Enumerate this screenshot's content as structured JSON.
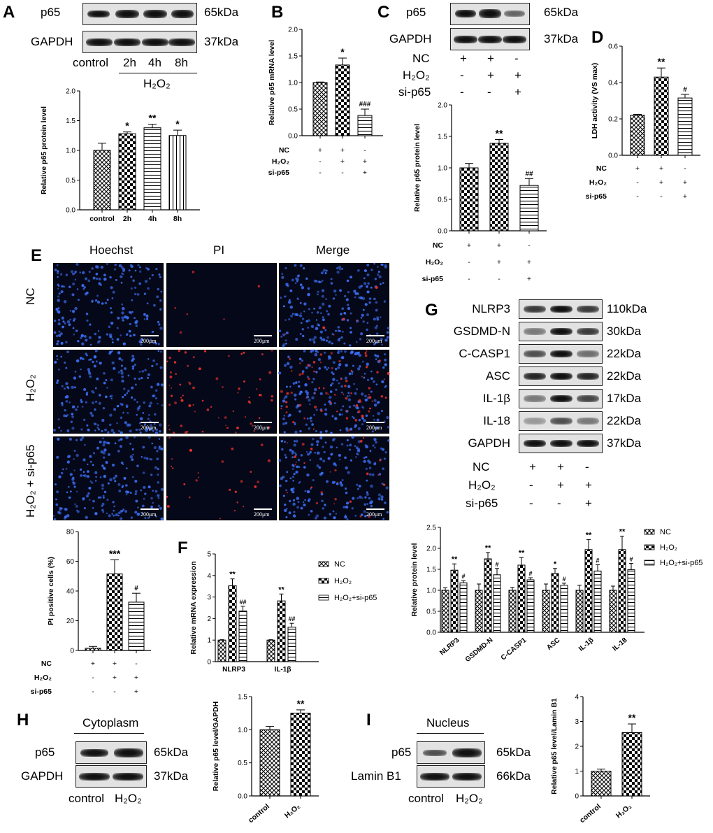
{
  "panels": {
    "A": {
      "label": "A",
      "blots": [
        {
          "name": "p65",
          "size": "65kDa"
        },
        {
          "name": "GAPDH",
          "size": "37kDa"
        }
      ],
      "lanes": [
        "control",
        "2h",
        "4h",
        "8h"
      ],
      "treatment": "H₂O₂"
    },
    "B": {
      "label": "B"
    },
    "C": {
      "label": "C",
      "blots": [
        {
          "name": "p65",
          "size": "65kDa"
        },
        {
          "name": "GAPDH",
          "size": "37kDa"
        }
      ],
      "conditions": [
        {
          "name": "NC",
          "signs": [
            "+",
            "+",
            "-"
          ]
        },
        {
          "name": "H₂O₂",
          "signs": [
            "-",
            "+",
            "+"
          ]
        },
        {
          "name": "si-p65",
          "signs": [
            "-",
            "-",
            "+"
          ]
        }
      ]
    },
    "D": {
      "label": "D"
    },
    "E": {
      "label": "E",
      "columns": [
        "Hoechst",
        "PI",
        "Merge"
      ],
      "rows": [
        "NC",
        "H₂O₂",
        "H₂O₂ + si-p65"
      ],
      "scale": "200μm"
    },
    "F": {
      "label": "F"
    },
    "G": {
      "label": "G",
      "blots": [
        {
          "name": "NLRP3",
          "size": "110kDa"
        },
        {
          "name": "GSDMD-N",
          "size": "30kDa"
        },
        {
          "name": "C-CASP1",
          "size": "22kDa"
        },
        {
          "name": "ASC",
          "size": "22kDa"
        },
        {
          "name": "IL-1β",
          "size": "17kDa"
        },
        {
          "name": "IL-18",
          "size": "22kDa"
        },
        {
          "name": "GAPDH",
          "size": "37kDa"
        }
      ],
      "conditions": [
        {
          "name": "NC",
          "signs": [
            "+",
            "+",
            "-"
          ]
        },
        {
          "name": "H₂O₂",
          "signs": [
            "-",
            "+",
            "+"
          ]
        },
        {
          "name": "si-p65",
          "signs": [
            "-",
            "-",
            "+"
          ]
        }
      ]
    },
    "H": {
      "label": "H",
      "compartment": "Cytoplasm",
      "blots": [
        {
          "name": "p65",
          "size": "65kDa"
        },
        {
          "name": "GAPDH",
          "size": "37kDa"
        }
      ],
      "lanes": [
        "control",
        "H₂O₂"
      ]
    },
    "I": {
      "label": "I",
      "compartment": "Nucleus",
      "blots": [
        {
          "name": "p65",
          "size": "65kDa"
        },
        {
          "name": "Lamin B1",
          "size": "66kDa"
        }
      ],
      "lanes": [
        "control",
        "H₂O₂"
      ]
    }
  },
  "chart_data": [
    {
      "id": "A",
      "type": "bar",
      "categories": [
        "control",
        "2h",
        "4h",
        "8h"
      ],
      "values": [
        1.0,
        1.28,
        1.38,
        1.25
      ],
      "errors": [
        0.12,
        0.03,
        0.06,
        0.09
      ],
      "sig": [
        "",
        "*",
        "**",
        "*"
      ],
      "ylabel": "Relative p65 protein level",
      "ylim": [
        0,
        2.0
      ],
      "yticks": [
        "0.0",
        "0.5",
        "1.0",
        "1.5",
        "2.0"
      ]
    },
    {
      "id": "B",
      "type": "bar",
      "categories": [
        "",
        "",
        ""
      ],
      "values": [
        1.0,
        1.33,
        0.38
      ],
      "errors": [
        0.01,
        0.13,
        0.12
      ],
      "sig": [
        "",
        "*",
        "###"
      ],
      "ylabel": "Relative p65 mRNA level",
      "ylim": [
        0,
        2.0
      ],
      "yticks": [
        "0.0",
        "0.5",
        "1.0",
        "1.5",
        "2.0"
      ],
      "conditions": [
        {
          "name": "NC",
          "signs": [
            "+",
            "+",
            "-"
          ]
        },
        {
          "name": "H₂O₂",
          "signs": [
            "-",
            "+",
            "+"
          ]
        },
        {
          "name": "si-p65",
          "signs": [
            "-",
            "-",
            "+"
          ]
        }
      ]
    },
    {
      "id": "C",
      "type": "bar",
      "categories": [
        "",
        "",
        ""
      ],
      "values": [
        1.0,
        1.39,
        0.72
      ],
      "errors": [
        0.07,
        0.06,
        0.11
      ],
      "sig": [
        "",
        "**",
        "##"
      ],
      "ylabel": "Relative p65 protein level",
      "ylim": [
        0,
        2.0
      ],
      "yticks": [
        "0.0",
        "0.5",
        "1.0",
        "1.5",
        "2.0"
      ],
      "conditions": [
        {
          "name": "NC",
          "signs": [
            "+",
            "+",
            "-"
          ]
        },
        {
          "name": "H₂O₂",
          "signs": [
            "-",
            "+",
            "+"
          ]
        },
        {
          "name": "si-p65",
          "signs": [
            "-",
            "-",
            "+"
          ]
        }
      ]
    },
    {
      "id": "D",
      "type": "bar",
      "categories": [
        "",
        "",
        ""
      ],
      "values": [
        0.22,
        0.43,
        0.315
      ],
      "errors": [
        0.005,
        0.05,
        0.02
      ],
      "sig": [
        "",
        "**",
        "#"
      ],
      "ylabel": "LDH activity (VS max)",
      "ylim": [
        0,
        0.6
      ],
      "yticks": [
        "0.0",
        "0.2",
        "0.4",
        "0.6"
      ],
      "conditions": [
        {
          "name": "NC",
          "signs": [
            "+",
            "+",
            "-"
          ]
        },
        {
          "name": "H₂O₂",
          "signs": [
            "-",
            "+",
            "+"
          ]
        },
        {
          "name": "si-p65",
          "signs": [
            "-",
            "-",
            "+"
          ]
        }
      ]
    },
    {
      "id": "E",
      "type": "bar",
      "categories": [
        "",
        "",
        ""
      ],
      "values": [
        1.5,
        51.5,
        32.5
      ],
      "errors": [
        1.2,
        9.5,
        6.0
      ],
      "sig": [
        "",
        "***",
        "#"
      ],
      "ylabel": "PI positive cells (%)",
      "ylim": [
        0,
        80
      ],
      "yticks": [
        "0",
        "20",
        "40",
        "60",
        "80"
      ],
      "conditions": [
        {
          "name": "NC",
          "signs": [
            "+",
            "+",
            "-"
          ]
        },
        {
          "name": "H₂O₂",
          "signs": [
            "-",
            "+",
            "+"
          ]
        },
        {
          "name": "si-p65",
          "signs": [
            "-",
            "-",
            "+"
          ]
        }
      ]
    },
    {
      "id": "F",
      "type": "bar",
      "categories": [
        "NLRP3",
        "IL-1β"
      ],
      "series": [
        {
          "name": "NC",
          "values": [
            1.0,
            1.0
          ],
          "errors": [
            0.02,
            0.02
          ],
          "sig": [
            "",
            ""
          ]
        },
        {
          "name": "H₂O₂",
          "values": [
            3.52,
            2.82
          ],
          "errors": [
            0.32,
            0.32
          ],
          "sig": [
            "**",
            "**"
          ]
        },
        {
          "name": "H₂O₂+si-p65",
          "values": [
            2.35,
            1.6
          ],
          "errors": [
            0.22,
            0.18
          ],
          "sig": [
            "##",
            "##"
          ]
        }
      ],
      "ylabel": "Relative mRNA expression",
      "ylim": [
        0,
        5
      ],
      "yticks": [
        "0",
        "1",
        "2",
        "3",
        "4",
        "5"
      ]
    },
    {
      "id": "G",
      "type": "bar",
      "categories": [
        "NLRP3",
        "GSDMD-N",
        "C-CASP1",
        "ASC",
        "IL-1β",
        "IL-18"
      ],
      "series": [
        {
          "name": "NC",
          "values": [
            1.0,
            1.0,
            1.0,
            1.0,
            1.0,
            1.0
          ],
          "errors": [
            0.06,
            0.15,
            0.07,
            0.15,
            0.12,
            0.1
          ],
          "sig": [
            "",
            "",
            "",
            "",
            "",
            ""
          ]
        },
        {
          "name": "H₂O₂",
          "values": [
            1.48,
            1.75,
            1.6,
            1.4,
            1.97,
            1.97
          ],
          "errors": [
            0.15,
            0.15,
            0.18,
            0.12,
            0.24,
            0.32
          ],
          "sig": [
            "**",
            "**",
            "**",
            "*",
            "**",
            "**"
          ]
        },
        {
          "name": "H₂O₂+si-p65",
          "values": [
            1.18,
            1.37,
            1.25,
            1.12,
            1.46,
            1.49
          ],
          "errors": [
            0.05,
            0.15,
            0.05,
            0.05,
            0.15,
            0.15
          ],
          "sig": [
            "#",
            "#",
            "#",
            "#",
            "#",
            "#"
          ]
        }
      ],
      "ylabel": "Relative protein level",
      "ylim": [
        0,
        2.5
      ],
      "yticks": [
        "0.0",
        "0.5",
        "1.0",
        "1.5",
        "2.0",
        "2.5"
      ]
    },
    {
      "id": "H",
      "type": "bar",
      "categories": [
        "control",
        "H₂O₂"
      ],
      "values": [
        1.0,
        1.25
      ],
      "errors": [
        0.05,
        0.05
      ],
      "sig": [
        "",
        "**"
      ],
      "ylabel": "Relative p65 level/GAPDH",
      "ylim": [
        0,
        1.5
      ],
      "yticks": [
        "0.0",
        "0.5",
        "1.0",
        "1.5"
      ]
    },
    {
      "id": "I",
      "type": "bar",
      "categories": [
        "control",
        "H₂O₂"
      ],
      "values": [
        1.0,
        2.55
      ],
      "errors": [
        0.08,
        0.35
      ],
      "sig": [
        "",
        "**"
      ],
      "ylabel": "Relative p65 level/Lamin B1",
      "ylim": [
        0,
        4
      ],
      "yticks": [
        "0",
        "1",
        "2",
        "3",
        "4"
      ]
    }
  ],
  "colors": {
    "bar_fill": "#ffffff",
    "stroke": "#000000",
    "micro_bg": "#050818",
    "hoechst": "#3a6cf0",
    "pi": "#e8302a"
  }
}
